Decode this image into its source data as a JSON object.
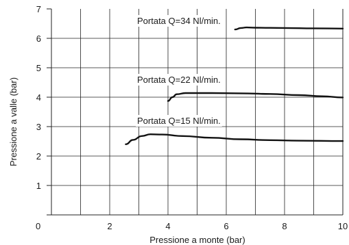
{
  "chart_data": {
    "type": "line",
    "xlabel": "Pressione a monte (bar)",
    "ylabel": "Pressione a valle (bar)",
    "xlim": [
      0,
      10
    ],
    "ylim": [
      0,
      7
    ],
    "x_ticks": [
      "0",
      "2",
      "4",
      "6",
      "8",
      "10"
    ],
    "y_ticks": [
      "1",
      "2",
      "3",
      "4",
      "5",
      "6",
      "7"
    ],
    "grid": true,
    "line_color": "#111111",
    "grid_color": "#222222",
    "series": [
      {
        "name": "Portata Q=34 Nl/min.",
        "points": [
          [
            6.3,
            6.3
          ],
          [
            6.5,
            6.35
          ],
          [
            6.7,
            6.37
          ],
          [
            7.0,
            6.36
          ],
          [
            8.0,
            6.35
          ],
          [
            9.0,
            6.34
          ],
          [
            10.0,
            6.33
          ]
        ]
      },
      {
        "name": "Portata Q=22 Nl/min.",
        "points": [
          [
            4.0,
            3.87
          ],
          [
            4.15,
            4.0
          ],
          [
            4.3,
            4.1
          ],
          [
            4.6,
            4.14
          ],
          [
            5.5,
            4.14
          ],
          [
            6.5,
            4.13
          ],
          [
            7.5,
            4.11
          ],
          [
            8.5,
            4.07
          ],
          [
            9.3,
            4.03
          ],
          [
            10.0,
            3.99
          ]
        ]
      },
      {
        "name": "Portata Q=15 Nl/min.",
        "points": [
          [
            2.55,
            2.4
          ],
          [
            2.8,
            2.55
          ],
          [
            3.1,
            2.68
          ],
          [
            3.4,
            2.74
          ],
          [
            3.8,
            2.73
          ],
          [
            4.5,
            2.68
          ],
          [
            5.5,
            2.62
          ],
          [
            6.5,
            2.57
          ],
          [
            7.5,
            2.54
          ],
          [
            8.5,
            2.52
          ],
          [
            10.0,
            2.51
          ]
        ]
      }
    ]
  }
}
